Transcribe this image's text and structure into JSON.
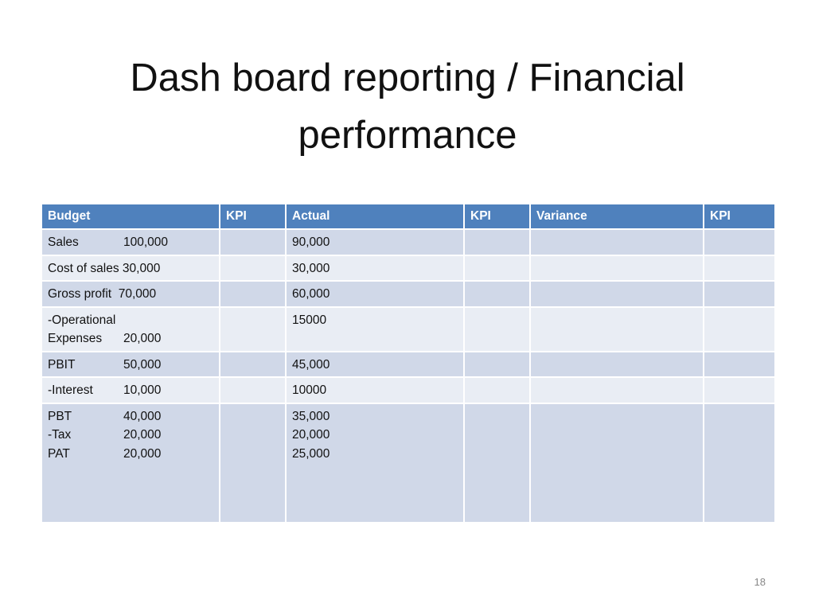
{
  "title": [
    "Dash board reporting / Financial",
    "performance"
  ],
  "table": {
    "headers": [
      "Budget",
      "KPI",
      "Actual",
      "KPI",
      "Variance",
      "KPI"
    ],
    "rows": [
      {
        "budget": [
          [
            "Sales",
            "100,000"
          ]
        ],
        "actual": [
          "90,000"
        ]
      },
      {
        "budget": [
          "Cost of sales 30,000"
        ],
        "actual": [
          "30,000"
        ]
      },
      {
        "budget": [
          "Gross profit  70,000"
        ],
        "actual": [
          "60,000"
        ]
      },
      {
        "budget": [
          "-Operational",
          [
            "Expenses",
            "20,000"
          ]
        ],
        "actual": [
          "15000"
        ]
      },
      {
        "budget": [
          [
            "PBIT",
            "50,000"
          ]
        ],
        "actual": [
          "45,000"
        ]
      },
      {
        "budget": [
          [
            "-Interest",
            "10,000"
          ]
        ],
        "actual": [
          "10000"
        ]
      },
      {
        "budget": [
          [
            "PBT",
            "40,000"
          ],
          [
            "-Tax",
            "20,000"
          ],
          [
            "PAT",
            "20,000"
          ]
        ],
        "actual": [
          "35,000",
          "20,000",
          "25,000"
        ]
      }
    ]
  },
  "page_number": "18"
}
